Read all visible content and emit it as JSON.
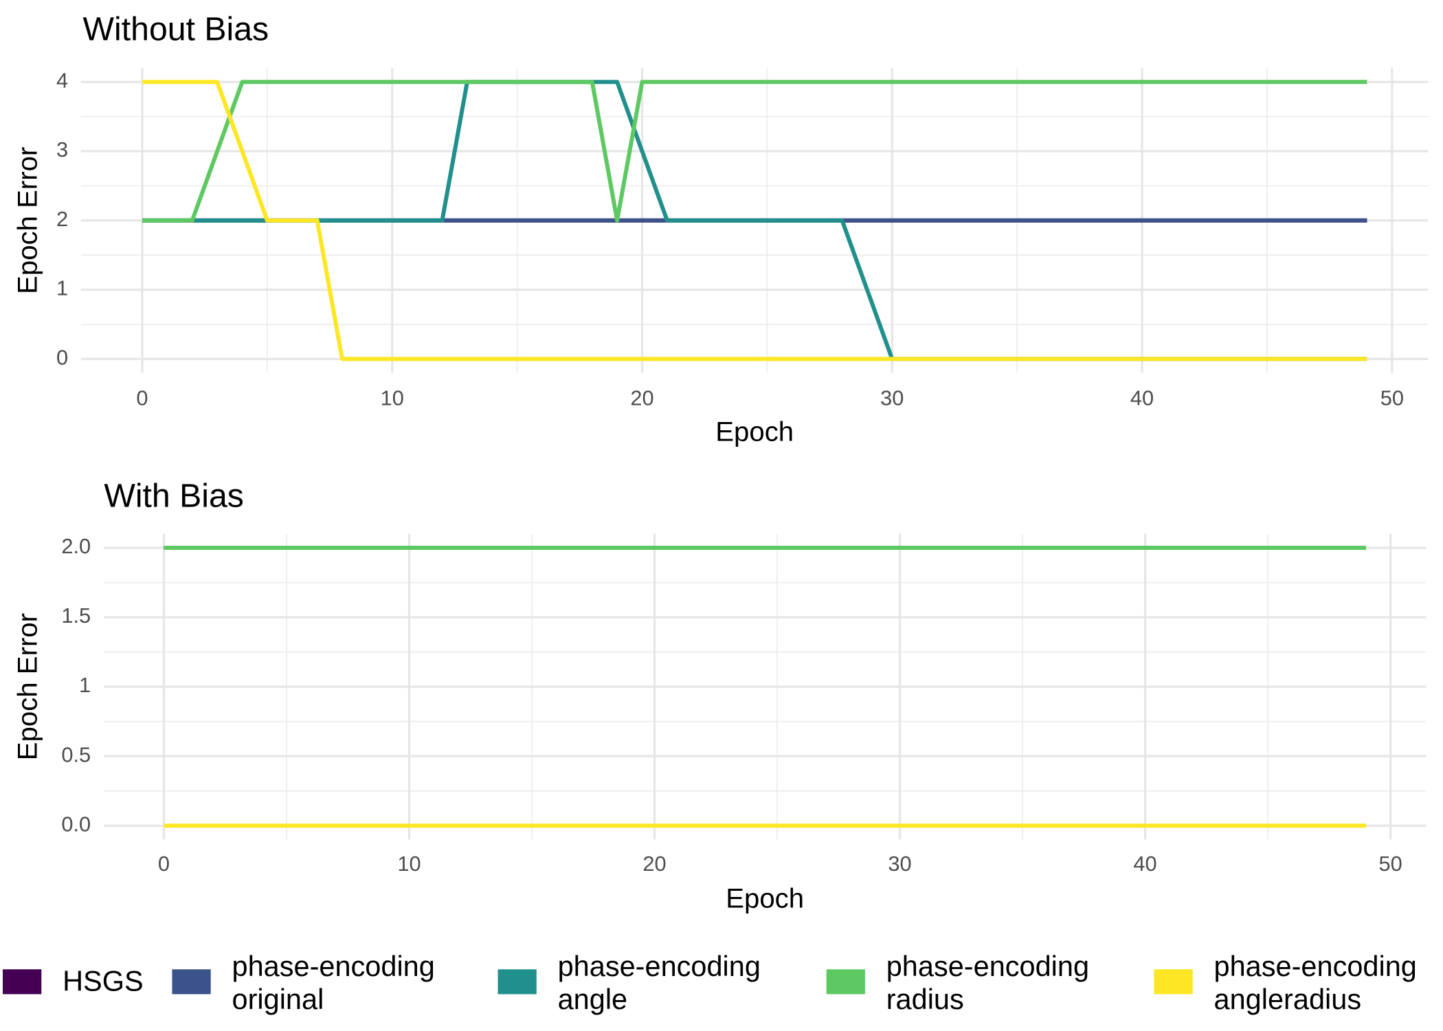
{
  "chart_data": [
    {
      "type": "line",
      "title": "Without Bias",
      "x_label": "Epoch",
      "y_label": "Epoch Error",
      "x": [
        0,
        1,
        2,
        3,
        4,
        5,
        6,
        7,
        8,
        9,
        10,
        11,
        12,
        13,
        14,
        15,
        16,
        17,
        18,
        19,
        20,
        21,
        22,
        23,
        24,
        25,
        26,
        27,
        28,
        29,
        30,
        31,
        32,
        33,
        34,
        35,
        36,
        37,
        38,
        39,
        40,
        41,
        42,
        43,
        44,
        45,
        46,
        47,
        48,
        49
      ],
      "xlim": [
        -2.45,
        51.45
      ],
      "xticks": [
        0,
        10,
        20,
        30,
        40,
        50
      ],
      "ylim": [
        -0.2,
        4.2
      ],
      "yticks": [
        0,
        1,
        2,
        3,
        4
      ],
      "grid": true,
      "series": [
        {
          "name": "HSGS",
          "color": "#440154",
          "values": [
            2,
            2,
            2,
            2,
            2,
            2,
            2,
            2,
            2,
            2,
            2,
            2,
            2,
            2,
            2,
            2,
            2,
            2,
            2,
            2,
            2,
            2,
            2,
            2,
            2,
            2,
            2,
            2,
            2,
            2,
            2,
            2,
            2,
            2,
            2,
            2,
            2,
            2,
            2,
            2,
            2,
            2,
            2,
            2,
            2,
            2,
            2,
            2,
            2,
            2
          ]
        },
        {
          "name": "phase-encoding original",
          "color": "#3b528b",
          "values": [
            2,
            2,
            2,
            2,
            2,
            2,
            2,
            2,
            2,
            2,
            2,
            2,
            2,
            2,
            2,
            2,
            2,
            2,
            2,
            2,
            2,
            2,
            2,
            2,
            2,
            2,
            2,
            2,
            2,
            2,
            2,
            2,
            2,
            2,
            2,
            2,
            2,
            2,
            2,
            2,
            2,
            2,
            2,
            2,
            2,
            2,
            2,
            2,
            2,
            2
          ]
        },
        {
          "name": "phase-encoding angle",
          "color": "#21908c",
          "values": [
            2,
            2,
            2,
            2,
            2,
            2,
            2,
            2,
            2,
            2,
            2,
            2,
            2,
            4,
            4,
            4,
            4,
            4,
            4,
            4,
            3,
            2,
            2,
            2,
            2,
            2,
            2,
            2,
            2,
            1,
            0,
            0,
            0,
            0,
            0,
            0,
            0,
            0,
            0,
            0,
            0,
            0,
            0,
            0,
            0,
            0,
            0,
            0,
            0,
            0
          ]
        },
        {
          "name": "phase-encoding radius",
          "color": "#5ec962",
          "values": [
            2,
            2,
            2,
            3,
            4,
            4,
            4,
            4,
            4,
            4,
            4,
            4,
            4,
            4,
            4,
            4,
            4,
            4,
            4,
            2,
            4,
            4,
            4,
            4,
            4,
            4,
            4,
            4,
            4,
            4,
            4,
            4,
            4,
            4,
            4,
            4,
            4,
            4,
            4,
            4,
            4,
            4,
            4,
            4,
            4,
            4,
            4,
            4,
            4,
            4
          ]
        },
        {
          "name": "phase-encoding angleradius",
          "color": "#fde725",
          "values": [
            4,
            4,
            4,
            4,
            3,
            2,
            2,
            2,
            0,
            0,
            0,
            0,
            0,
            0,
            0,
            0,
            0,
            0,
            0,
            0,
            0,
            0,
            0,
            0,
            0,
            0,
            0,
            0,
            0,
            0,
            0,
            0,
            0,
            0,
            0,
            0,
            0,
            0,
            0,
            0,
            0,
            0,
            0,
            0,
            0,
            0,
            0,
            0,
            0,
            0
          ]
        }
      ]
    },
    {
      "type": "line",
      "title": "With Bias",
      "x_label": "Epoch",
      "y_label": "Epoch Error",
      "x": [
        0,
        1,
        2,
        3,
        4,
        5,
        6,
        7,
        8,
        9,
        10,
        11,
        12,
        13,
        14,
        15,
        16,
        17,
        18,
        19,
        20,
        21,
        22,
        23,
        24,
        25,
        26,
        27,
        28,
        29,
        30,
        31,
        32,
        33,
        34,
        35,
        36,
        37,
        38,
        39,
        40,
        41,
        42,
        43,
        44,
        45,
        46,
        47,
        48,
        49
      ],
      "xlim": [
        -2.45,
        51.45
      ],
      "xticks": [
        0,
        10,
        20,
        30,
        40,
        50
      ],
      "ylim": [
        -0.1,
        2.1
      ],
      "yticks": [
        {
          "value": 0,
          "label": "0.0"
        },
        0.5,
        1,
        1.5,
        {
          "value": 2,
          "label": "2.0"
        }
      ],
      "grid": true,
      "series": [
        {
          "name": "HSGS",
          "color": "#440154",
          "values": [
            2,
            2,
            2,
            2,
            2,
            2,
            2,
            2,
            2,
            2,
            2,
            2,
            2,
            2,
            2,
            2,
            2,
            2,
            2,
            2,
            2,
            2,
            2,
            2,
            2,
            2,
            2,
            2,
            2,
            2,
            2,
            2,
            2,
            2,
            2,
            2,
            2,
            2,
            2,
            2,
            2,
            2,
            2,
            2,
            2,
            2,
            2,
            2,
            2,
            2
          ]
        },
        {
          "name": "phase-encoding original",
          "color": "#3b528b",
          "values": [
            2,
            2,
            2,
            2,
            2,
            2,
            2,
            2,
            2,
            2,
            2,
            2,
            2,
            2,
            2,
            2,
            2,
            2,
            2,
            2,
            2,
            2,
            2,
            2,
            2,
            2,
            2,
            2,
            2,
            2,
            2,
            2,
            2,
            2,
            2,
            2,
            2,
            2,
            2,
            2,
            2,
            2,
            2,
            2,
            2,
            2,
            2,
            2,
            2,
            2
          ]
        },
        {
          "name": "phase-encoding angle",
          "color": "#21908c",
          "values": [
            2,
            2,
            2,
            2,
            2,
            2,
            2,
            2,
            2,
            2,
            2,
            2,
            2,
            2,
            2,
            2,
            2,
            2,
            2,
            2,
            2,
            2,
            2,
            2,
            2,
            2,
            2,
            2,
            2,
            2,
            2,
            2,
            2,
            2,
            2,
            2,
            2,
            2,
            2,
            2,
            2,
            2,
            2,
            2,
            2,
            2,
            2,
            2,
            2,
            2
          ]
        },
        {
          "name": "phase-encoding radius",
          "color": "#5ec962",
          "values": [
            2,
            2,
            2,
            2,
            2,
            2,
            2,
            2,
            2,
            2,
            2,
            2,
            2,
            2,
            2,
            2,
            2,
            2,
            2,
            2,
            2,
            2,
            2,
            2,
            2,
            2,
            2,
            2,
            2,
            2,
            2,
            2,
            2,
            2,
            2,
            2,
            2,
            2,
            2,
            2,
            2,
            2,
            2,
            2,
            2,
            2,
            2,
            2,
            2,
            2
          ]
        },
        {
          "name": "phase-encoding angleradius",
          "color": "#fde725",
          "values": [
            0,
            0,
            0,
            0,
            0,
            0,
            0,
            0,
            0,
            0,
            0,
            0,
            0,
            0,
            0,
            0,
            0,
            0,
            0,
            0,
            0,
            0,
            0,
            0,
            0,
            0,
            0,
            0,
            0,
            0,
            0,
            0,
            0,
            0,
            0,
            0,
            0,
            0,
            0,
            0,
            0,
            0,
            0,
            0,
            0,
            0,
            0,
            0,
            0,
            0
          ]
        }
      ]
    }
  ]
}
